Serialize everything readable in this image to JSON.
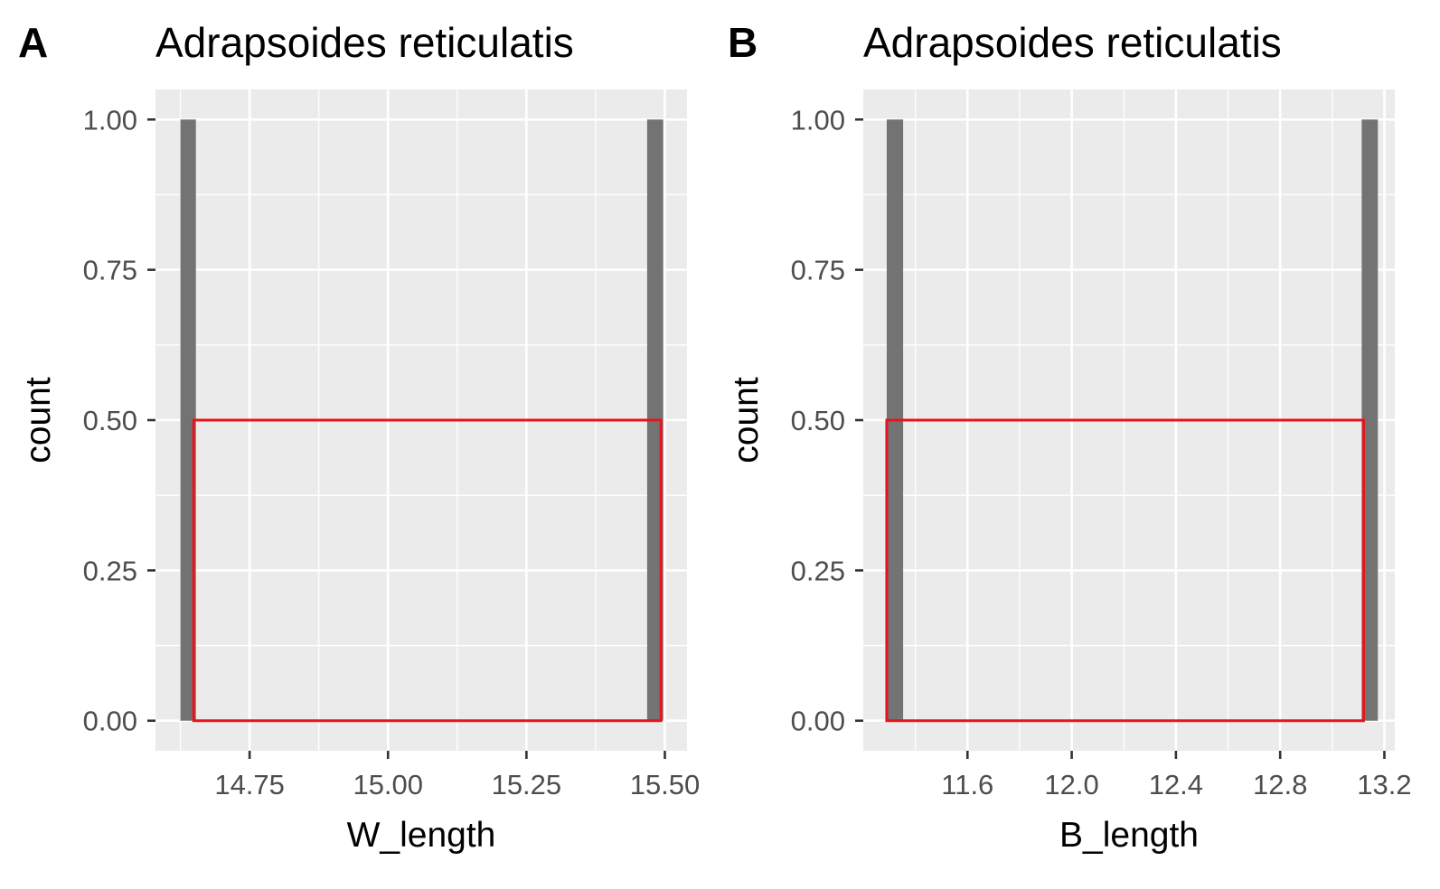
{
  "chart_data": [
    {
      "panel_letter": "A",
      "type": "bar",
      "title": "Adrapsoides reticulatis",
      "xlabel": "W_length",
      "ylabel": "count",
      "xlim": [
        14.58,
        15.54
      ],
      "ylim": [
        -0.05,
        1.05
      ],
      "x_ticks": [
        14.75,
        15.0,
        15.25,
        15.5
      ],
      "x_tick_labels": [
        "14.75",
        "15.00",
        "15.25",
        "15.50"
      ],
      "y_ticks": [
        0,
        0.25,
        0.5,
        0.75,
        1
      ],
      "y_tick_labels": [
        "0.00",
        "0.25",
        "0.50",
        "0.75",
        "1.00"
      ],
      "bars": [
        {
          "x0": 14.625,
          "x1": 14.653,
          "count": 1
        },
        {
          "x0": 15.468,
          "x1": 15.497,
          "count": 1
        }
      ],
      "highlight_box": {
        "x0": 14.649,
        "x1": 15.493,
        "y0": 0,
        "y1": 0.5
      },
      "grid": true,
      "colors": {
        "panel_bg": "#EBEBEB",
        "grid": "#FFFFFF",
        "bar": "#737373",
        "highlight": "#E8141B"
      }
    },
    {
      "panel_letter": "B",
      "type": "bar",
      "title": "Adrapsoides reticulatis",
      "xlabel": "B_length",
      "ylabel": "count",
      "xlim": [
        11.2,
        13.24
      ],
      "ylim": [
        -0.05,
        1.05
      ],
      "x_ticks": [
        11.6,
        12.0,
        12.4,
        12.8,
        13.2
      ],
      "x_tick_labels": [
        "11.6",
        "12.0",
        "12.4",
        "12.8",
        "13.2"
      ],
      "y_ticks": [
        0,
        0.25,
        0.5,
        0.75,
        1
      ],
      "y_tick_labels": [
        "0.00",
        "0.25",
        "0.50",
        "0.75",
        "1.00"
      ],
      "bars": [
        {
          "x0": 11.29,
          "x1": 11.353,
          "count": 1
        },
        {
          "x0": 13.113,
          "x1": 13.175,
          "count": 1
        }
      ],
      "highlight_box": {
        "x0": 11.29,
        "x1": 13.12,
        "y0": 0,
        "y1": 0.5
      },
      "grid": true,
      "colors": {
        "panel_bg": "#EBEBEB",
        "grid": "#FFFFFF",
        "bar": "#737373",
        "highlight": "#E8141B"
      }
    }
  ]
}
